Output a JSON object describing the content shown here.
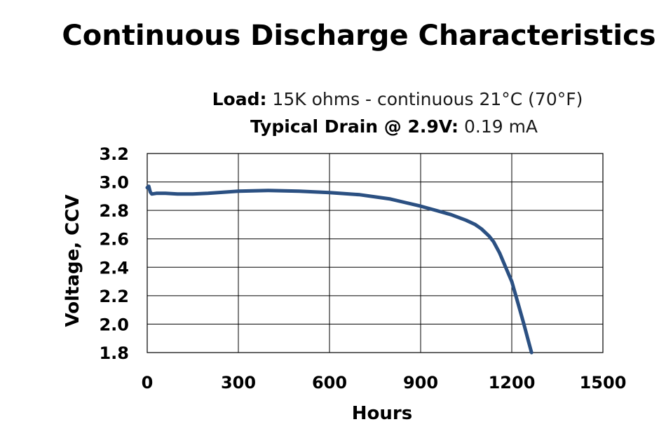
{
  "chart_data": {
    "type": "line",
    "title": "Continuous Discharge Characteristics",
    "subtitle_line1": {
      "bold": "Load:",
      "text": " 15K ohms - continuous  21°C (70°F)"
    },
    "subtitle_line2": {
      "bold": "Typical Drain @ 2.9V:",
      "text": " 0.19 mA"
    },
    "xlabel": "Hours",
    "ylabel": "Voltage, CCV",
    "xlim": [
      0,
      1500
    ],
    "ylim": [
      1.8,
      3.2
    ],
    "xticks": [
      "0",
      "300",
      "600",
      "900",
      "1200",
      "1500"
    ],
    "yticks": [
      "3.2",
      "3.0",
      "2.8",
      "2.6",
      "2.4",
      "2.2",
      "2.0",
      "1.8"
    ],
    "grid": true,
    "line_color": "#2b5082",
    "series": [
      {
        "name": "Voltage",
        "x": [
          0,
          5,
          10,
          15,
          30,
          60,
          100,
          150,
          200,
          300,
          400,
          500,
          600,
          700,
          800,
          850,
          900,
          950,
          1000,
          1050,
          1080,
          1100,
          1125,
          1140,
          1160,
          1180,
          1200,
          1220,
          1240,
          1255,
          1265
        ],
        "y": [
          2.96,
          2.97,
          2.93,
          2.915,
          2.92,
          2.92,
          2.915,
          2.915,
          2.92,
          2.935,
          2.94,
          2.935,
          2.925,
          2.91,
          2.88,
          2.855,
          2.83,
          2.8,
          2.77,
          2.73,
          2.7,
          2.67,
          2.62,
          2.58,
          2.5,
          2.4,
          2.3,
          2.15,
          2.0,
          1.88,
          1.8
        ]
      }
    ]
  }
}
